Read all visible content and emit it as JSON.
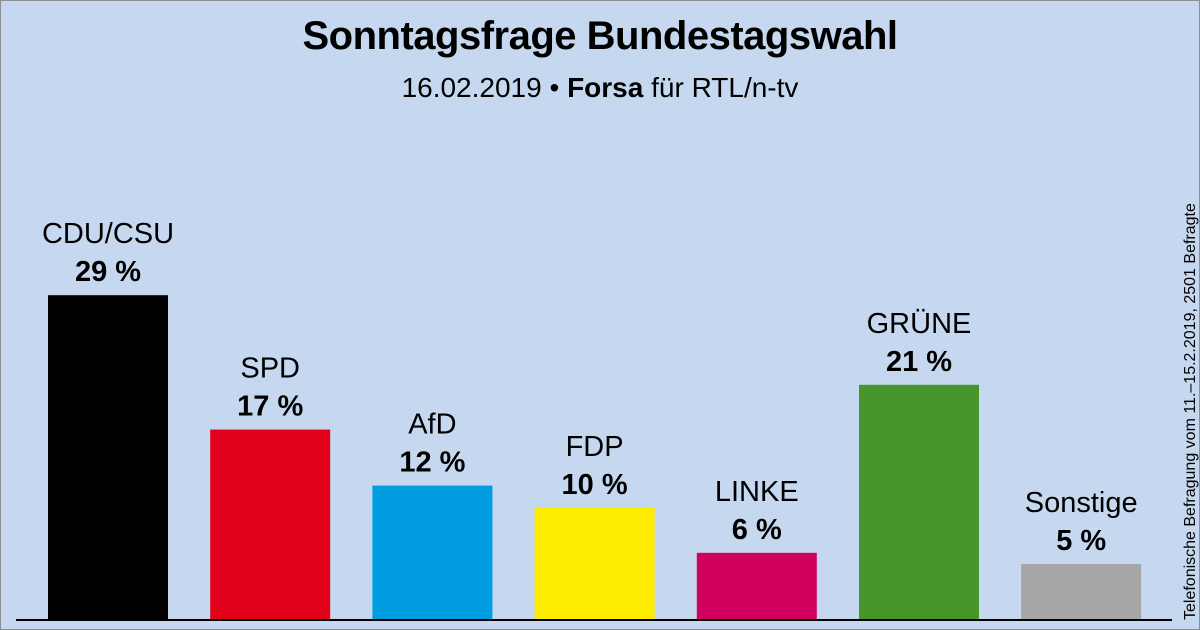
{
  "chart_data": {
    "type": "bar",
    "title": "Sonntagsfrage Bundestagswahl",
    "subtitle": {
      "date": "16.02.2019",
      "separator": "•",
      "institute": "Forsa",
      "client": "für RTL/n-tv"
    },
    "note": "Telefonische Befragung vom 11.–15.2.2019, 2501 Befragte",
    "categories": [
      "CDU/CSU",
      "SPD",
      "AfD",
      "FDP",
      "LINKE",
      "GRÜNE",
      "Sonstige"
    ],
    "values": [
      29,
      17,
      12,
      10,
      6,
      21,
      5
    ],
    "value_labels": [
      "29 %",
      "17 %",
      "12 %",
      "10 %",
      "6 %",
      "21 %",
      "5 %"
    ],
    "colors": [
      "#000000",
      "#e2001a",
      "#009ee0",
      "#ffed00",
      "#d1005f",
      "#46962b",
      "#a6a6a6"
    ],
    "xlabel": "",
    "ylabel": "",
    "ylim": [
      0,
      29
    ],
    "grid": false,
    "legend": "none"
  }
}
